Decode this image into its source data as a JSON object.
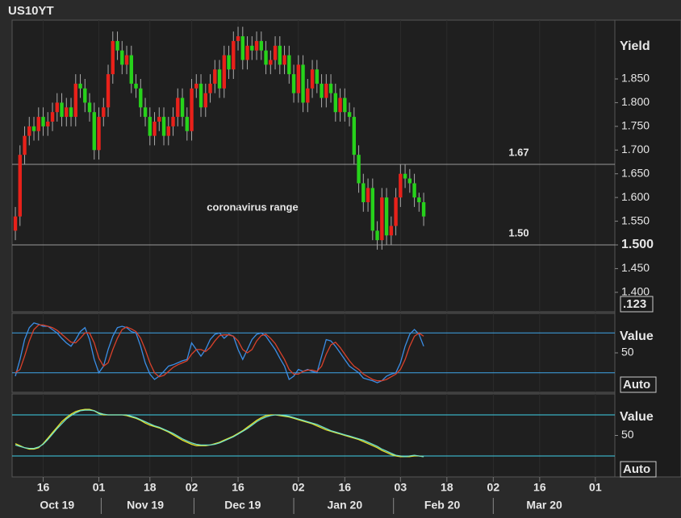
{
  "title": "US10YT",
  "chart_data": [
    {
      "type": "candlestick",
      "y_label": "Yield",
      "scale_label": ".123",
      "up_color": "#e8211a",
      "down_color": "#27d21b",
      "ylim": [
        1.359,
        1.974
      ],
      "yticks": [
        {
          "value": 1.4,
          "label": "1.400"
        },
        {
          "value": 1.45,
          "label": "1.450"
        },
        {
          "value": 1.5,
          "label": "1.500"
        },
        {
          "value": 1.55,
          "label": "1.550"
        },
        {
          "value": 1.6,
          "label": "1.600"
        },
        {
          "value": 1.65,
          "label": "1.650"
        },
        {
          "value": 1.7,
          "label": "1.700"
        },
        {
          "value": 1.75,
          "label": "1.750"
        },
        {
          "value": 1.8,
          "label": "1.800"
        },
        {
          "value": 1.85,
          "label": "1.850"
        }
      ],
      "highlight_tick": 1.5,
      "xlim": [
        -0.7,
        129.2
      ],
      "xticks": [
        {
          "value": 6,
          "label": "16"
        },
        {
          "value": 18,
          "label": "01"
        },
        {
          "value": 29,
          "label": "18"
        },
        {
          "value": 38,
          "label": "02"
        },
        {
          "value": 48,
          "label": "16"
        },
        {
          "value": 61,
          "label": "02"
        },
        {
          "value": 71,
          "label": "16"
        },
        {
          "value": 83,
          "label": "03"
        },
        {
          "value": 93,
          "label": "18"
        },
        {
          "value": 103,
          "label": "02"
        },
        {
          "value": 113,
          "label": "16"
        },
        {
          "value": 125,
          "label": "01"
        }
      ],
      "month_labels": [
        {
          "value": 9,
          "label": "Oct 19"
        },
        {
          "value": 28,
          "label": "Nov 19"
        },
        {
          "value": 49,
          "label": "Dec 19"
        },
        {
          "value": 71,
          "label": "Jan 20"
        },
        {
          "value": 92,
          "label": "Feb 20"
        },
        {
          "value": 114,
          "label": "Mar 20"
        }
      ],
      "grid": true,
      "annotations": [
        {
          "value": 1.67,
          "label": "1.67"
        },
        {
          "value": 1.5,
          "label": "1.50"
        }
      ],
      "note": "coronavirus range",
      "open": [
        1.53,
        1.56,
        1.69,
        1.73,
        1.75,
        1.74,
        1.77,
        1.75,
        1.76,
        1.78,
        1.8,
        1.77,
        1.79,
        1.77,
        1.84,
        1.83,
        1.8,
        1.78,
        1.7,
        1.77,
        1.79,
        1.86,
        1.93,
        1.91,
        1.88,
        1.9,
        1.84,
        1.83,
        1.79,
        1.77,
        1.73,
        1.76,
        1.77,
        1.73,
        1.75,
        1.77,
        1.81,
        1.77,
        1.74,
        1.83,
        1.84,
        1.79,
        1.82,
        1.84,
        1.87,
        1.83,
        1.9,
        1.87,
        1.93,
        1.94,
        1.89,
        1.92,
        1.91,
        1.93,
        1.91,
        1.88,
        1.89,
        1.92,
        1.88,
        1.9,
        1.86,
        1.82,
        1.88,
        1.8,
        1.83,
        1.87,
        1.84,
        1.81,
        1.84,
        1.82,
        1.78,
        1.81,
        1.78,
        1.77,
        1.69,
        1.63,
        1.59,
        1.62,
        1.53,
        1.51,
        1.6,
        1.52,
        1.54,
        1.6,
        1.65,
        1.64,
        1.63,
        1.6,
        1.59
      ],
      "high": [
        1.58,
        1.71,
        1.75,
        1.77,
        1.77,
        1.79,
        1.79,
        1.78,
        1.8,
        1.82,
        1.82,
        1.81,
        1.81,
        1.86,
        1.86,
        1.85,
        1.82,
        1.8,
        1.79,
        1.81,
        1.88,
        1.95,
        1.95,
        1.93,
        1.92,
        1.92,
        1.86,
        1.85,
        1.81,
        1.79,
        1.78,
        1.79,
        1.79,
        1.77,
        1.79,
        1.83,
        1.83,
        1.79,
        1.85,
        1.86,
        1.86,
        1.84,
        1.86,
        1.89,
        1.89,
        1.92,
        1.92,
        1.95,
        1.96,
        1.96,
        1.94,
        1.94,
        1.95,
        1.95,
        1.93,
        1.91,
        1.94,
        1.94,
        1.92,
        1.92,
        1.88,
        1.9,
        1.9,
        1.85,
        1.89,
        1.89,
        1.86,
        1.86,
        1.86,
        1.84,
        1.83,
        1.83,
        1.8,
        1.79,
        1.71,
        1.65,
        1.64,
        1.64,
        1.55,
        1.62,
        1.62,
        1.56,
        1.62,
        1.67,
        1.67,
        1.66,
        1.65,
        1.61,
        1.61
      ],
      "low": [
        1.51,
        1.54,
        1.67,
        1.71,
        1.72,
        1.72,
        1.73,
        1.73,
        1.74,
        1.76,
        1.75,
        1.75,
        1.75,
        1.75,
        1.81,
        1.78,
        1.76,
        1.68,
        1.68,
        1.75,
        1.77,
        1.84,
        1.89,
        1.86,
        1.86,
        1.82,
        1.81,
        1.77,
        1.75,
        1.71,
        1.71,
        1.74,
        1.71,
        1.71,
        1.73,
        1.75,
        1.75,
        1.72,
        1.72,
        1.81,
        1.77,
        1.77,
        1.8,
        1.82,
        1.81,
        1.81,
        1.85,
        1.85,
        1.91,
        1.87,
        1.87,
        1.89,
        1.89,
        1.89,
        1.86,
        1.86,
        1.87,
        1.86,
        1.86,
        1.84,
        1.8,
        1.8,
        1.78,
        1.78,
        1.81,
        1.82,
        1.79,
        1.79,
        1.8,
        1.76,
        1.76,
        1.76,
        1.75,
        1.67,
        1.61,
        1.57,
        1.57,
        1.51,
        1.49,
        1.49,
        1.5,
        1.5,
        1.52,
        1.58,
        1.62,
        1.61,
        1.58,
        1.57,
        1.54
      ],
      "close": [
        1.56,
        1.69,
        1.73,
        1.75,
        1.74,
        1.77,
        1.75,
        1.76,
        1.78,
        1.8,
        1.77,
        1.79,
        1.77,
        1.84,
        1.83,
        1.8,
        1.78,
        1.7,
        1.77,
        1.79,
        1.86,
        1.93,
        1.91,
        1.88,
        1.9,
        1.84,
        1.83,
        1.79,
        1.77,
        1.73,
        1.76,
        1.77,
        1.73,
        1.75,
        1.77,
        1.81,
        1.77,
        1.74,
        1.83,
        1.84,
        1.79,
        1.82,
        1.84,
        1.87,
        1.83,
        1.9,
        1.87,
        1.93,
        1.94,
        1.89,
        1.92,
        1.91,
        1.93,
        1.91,
        1.88,
        1.89,
        1.92,
        1.88,
        1.9,
        1.86,
        1.82,
        1.88,
        1.8,
        1.83,
        1.87,
        1.84,
        1.81,
        1.84,
        1.82,
        1.78,
        1.81,
        1.78,
        1.77,
        1.69,
        1.63,
        1.59,
        1.62,
        1.53,
        1.51,
        1.6,
        1.52,
        1.54,
        1.6,
        1.65,
        1.64,
        1.63,
        1.6,
        1.59,
        1.56
      ]
    },
    {
      "type": "line",
      "y_label": "Value",
      "scale_label": "Auto",
      "ylim": [
        -9.4,
        109.4
      ],
      "yticks": [
        50
      ],
      "levels": [
        80,
        20
      ],
      "level_color": "#3fa6e8",
      "series": [
        {
          "color": "#3a8ee6",
          "values": [
            15,
            40,
            70,
            88,
            95,
            93,
            90,
            90,
            85,
            80,
            72,
            65,
            60,
            70,
            82,
            88,
            70,
            40,
            20,
            30,
            55,
            75,
            88,
            90,
            88,
            82,
            80,
            60,
            35,
            18,
            10,
            15,
            22,
            30,
            32,
            35,
            38,
            40,
            65,
            55,
            45,
            55,
            70,
            78,
            80,
            72,
            78,
            75,
            55,
            40,
            55,
            70,
            78,
            80,
            75,
            65,
            55,
            42,
            30,
            10,
            15,
            25,
            22,
            25,
            22,
            20,
            45,
            70,
            68,
            60,
            50,
            40,
            30,
            25,
            20,
            12,
            10,
            8,
            5,
            8,
            15,
            18,
            20,
            35,
            60,
            78,
            85,
            78,
            60
          ]
        },
        {
          "color": "#d9412b",
          "values": [
            20,
            25,
            45,
            68,
            85,
            92,
            92,
            90,
            88,
            84,
            78,
            72,
            66,
            65,
            72,
            80,
            80,
            65,
            42,
            30,
            35,
            55,
            72,
            85,
            89,
            86,
            82,
            72,
            55,
            35,
            20,
            14,
            16,
            22,
            28,
            32,
            35,
            38,
            48,
            55,
            55,
            52,
            58,
            68,
            76,
            77,
            77,
            75,
            68,
            55,
            50,
            55,
            68,
            76,
            78,
            72,
            64,
            52,
            40,
            25,
            18,
            18,
            22,
            24,
            24,
            22,
            30,
            48,
            62,
            66,
            58,
            48,
            38,
            30,
            25,
            18,
            14,
            10,
            8,
            8,
            10,
            14,
            18,
            25,
            40,
            60,
            75,
            80,
            75
          ]
        }
      ]
    },
    {
      "type": "line",
      "y_label": "Value",
      "scale_label": "Auto",
      "ylim": [
        -10.6,
        110.6
      ],
      "yticks": [
        50
      ],
      "levels": [
        80,
        20
      ],
      "level_color": "#3fd0e8",
      "series": [
        {
          "color": "#e8e22a",
          "values": [
            38,
            35,
            32,
            30,
            30,
            32,
            38,
            46,
            54,
            62,
            70,
            76,
            81,
            85,
            87,
            88,
            88,
            86,
            82,
            80,
            80,
            80,
            80,
            80,
            79,
            77,
            75,
            72,
            68,
            65,
            63,
            61,
            58,
            55,
            51,
            47,
            43,
            40,
            37,
            35,
            35,
            35,
            36,
            38,
            40,
            43,
            46,
            49,
            53,
            57,
            62,
            67,
            72,
            76,
            79,
            80,
            80,
            79,
            78,
            77,
            75,
            73,
            71,
            69,
            67,
            64,
            61,
            58,
            56,
            54,
            52,
            50,
            48,
            46,
            44,
            41,
            38,
            35,
            32,
            28,
            25,
            22,
            20,
            19,
            19,
            19,
            20,
            20,
            19
          ]
        },
        {
          "color": "#6fe0c8",
          "values": [
            36,
            34,
            32,
            31,
            31,
            33,
            37,
            44,
            52,
            60,
            67,
            74,
            79,
            83,
            86,
            87,
            87,
            86,
            83,
            81,
            80,
            80,
            80,
            80,
            80,
            78,
            76,
            73,
            70,
            67,
            64,
            62,
            59,
            56,
            53,
            49,
            45,
            42,
            39,
            37,
            36,
            36,
            36,
            37,
            39,
            42,
            45,
            48,
            52,
            56,
            60,
            65,
            70,
            74,
            77,
            79,
            80,
            80,
            79,
            78,
            76,
            74,
            72,
            70,
            68,
            66,
            63,
            60,
            57,
            55,
            53,
            51,
            49,
            47,
            45,
            43,
            40,
            37,
            34,
            30,
            27,
            24,
            21,
            20,
            19,
            20,
            21,
            20,
            19
          ]
        }
      ]
    }
  ]
}
